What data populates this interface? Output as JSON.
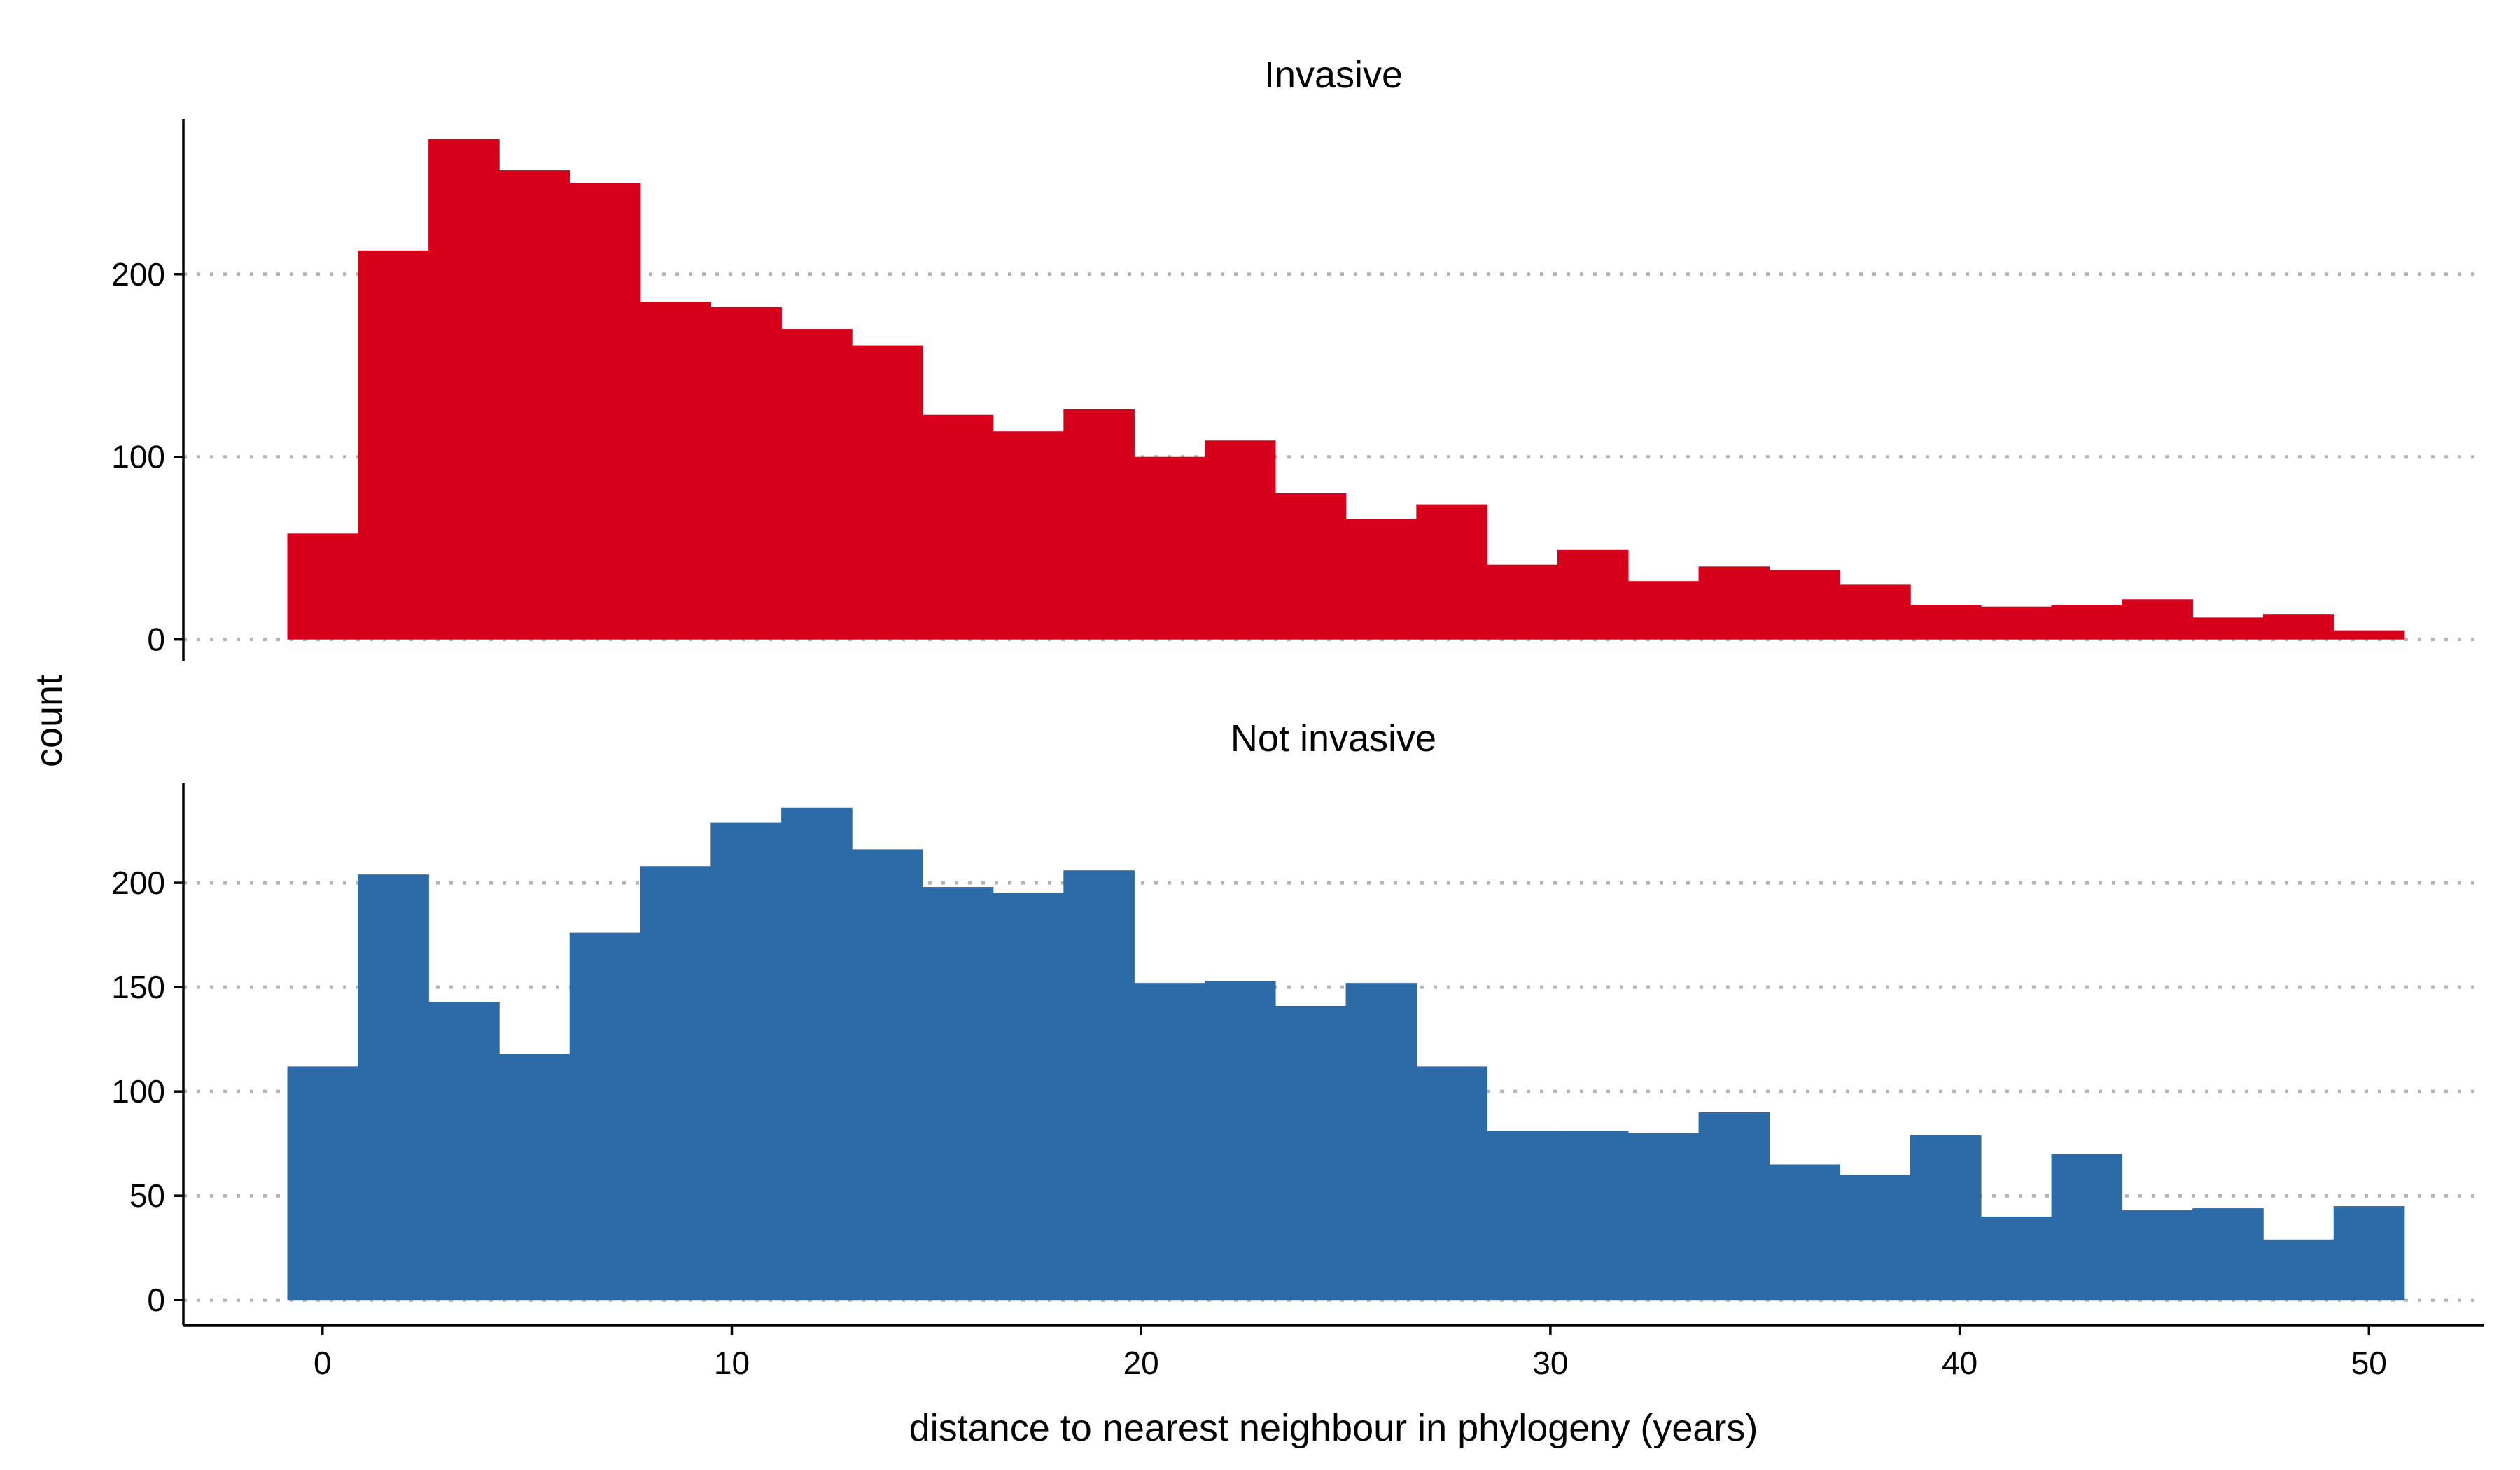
{
  "chart_data": {
    "type": "bar",
    "subtype": "histogram",
    "xlabel": "distance to nearest neighbour in phylogeny (years)",
    "ylabel": "count",
    "xlim": [
      -3.4,
      52.8
    ],
    "x_ticks": [
      0,
      10,
      20,
      30,
      40,
      50
    ],
    "bin_width": 1.724,
    "bin_start": -0.86,
    "grid": "horizontal dotted",
    "legend": "none",
    "panels": [
      {
        "title": "Invasive",
        "color": "#d7001b",
        "ylim": [
          -12,
          285
        ],
        "y_ticks": [
          0,
          100,
          200
        ],
        "values": [
          58,
          213,
          274,
          257,
          250,
          185,
          182,
          170,
          161,
          123,
          114,
          126,
          100,
          109,
          80,
          66,
          74,
          41,
          49,
          32,
          40,
          38,
          30,
          19,
          18,
          19,
          22,
          12,
          14,
          5
        ]
      },
      {
        "title": "Not invasive",
        "color": "#2d6aa8",
        "ylim": [
          -12,
          248
        ],
        "y_ticks": [
          0,
          50,
          100,
          150,
          200
        ],
        "values": [
          112,
          204,
          143,
          118,
          176,
          208,
          229,
          236,
          216,
          198,
          195,
          206,
          152,
          153,
          141,
          152,
          112,
          81,
          81,
          80,
          90,
          65,
          60,
          79,
          40,
          70,
          43,
          44,
          29,
          45
        ]
      }
    ]
  }
}
